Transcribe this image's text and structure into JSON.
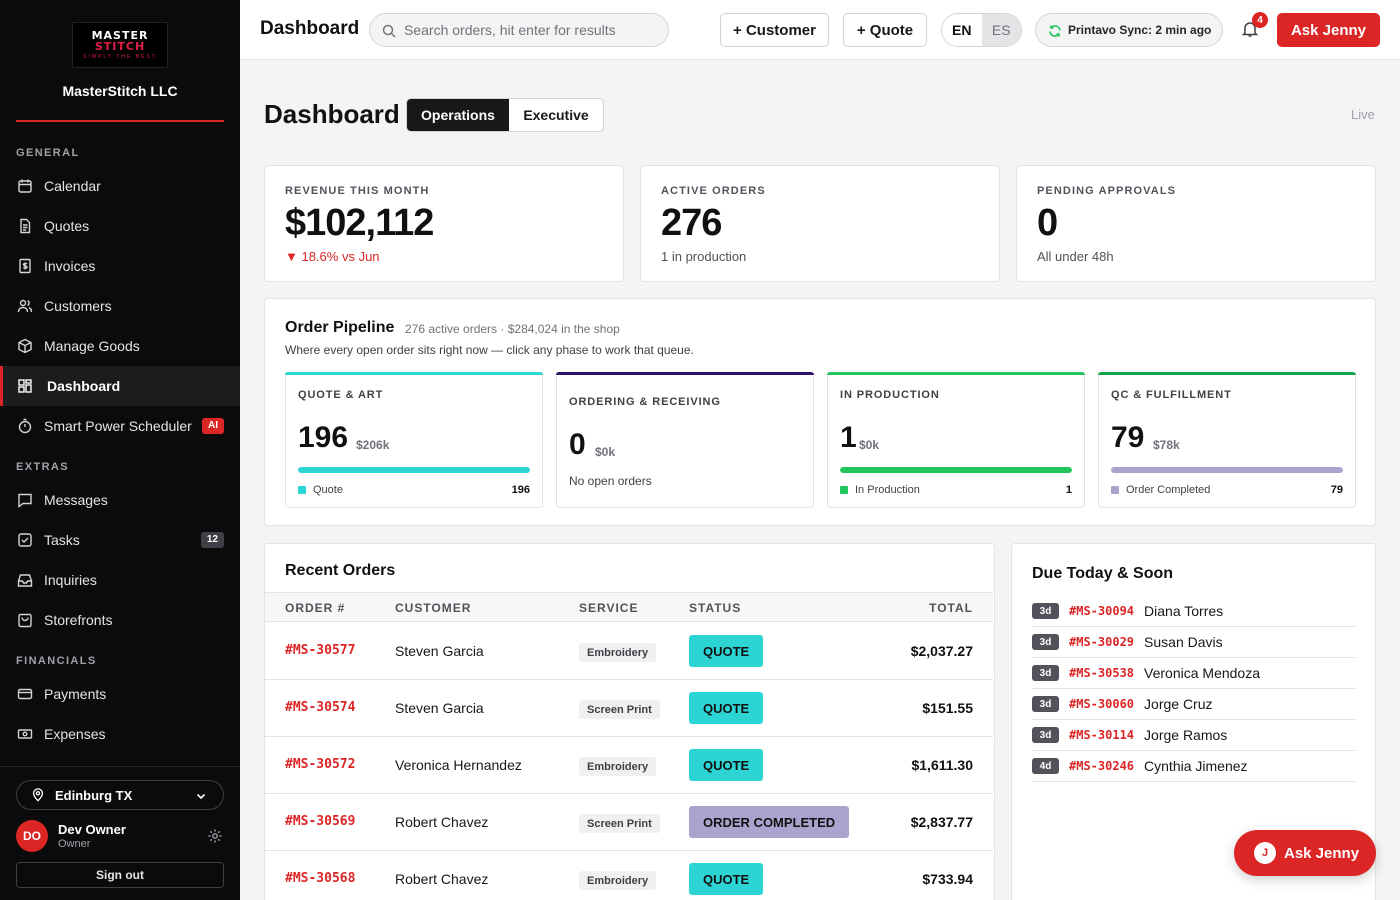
{
  "brand": {
    "logo_text_top": "MASTER",
    "logo_text_main": "STITCH",
    "logo_tagline": "SIMPLY THE BEST",
    "company_name": "MasterStitch LLC",
    "accent_color": "#dc2626"
  },
  "sidebar": {
    "sections": [
      {
        "label": "GENERAL"
      },
      {
        "label": "EXTRAS"
      },
      {
        "label": "FINANCIALS"
      }
    ],
    "general_items": [
      {
        "label": "Calendar",
        "icon": "calendar-icon"
      },
      {
        "label": "Quotes",
        "icon": "document-icon"
      },
      {
        "label": "Invoices",
        "icon": "invoice-icon"
      },
      {
        "label": "Customers",
        "icon": "users-icon"
      },
      {
        "label": "Manage Goods",
        "icon": "box-icon"
      },
      {
        "label": "Dashboard",
        "icon": "grid-icon",
        "active": true
      },
      {
        "label": "Smart Power Scheduler",
        "icon": "stopwatch-icon",
        "badge": "AI"
      }
    ],
    "extras_items": [
      {
        "label": "Messages",
        "icon": "message-icon"
      },
      {
        "label": "Tasks",
        "icon": "checkbox-icon",
        "badge": "12"
      },
      {
        "label": "Inquiries",
        "icon": "inbox-icon"
      },
      {
        "label": "Storefronts",
        "icon": "store-icon"
      }
    ],
    "financial_items": [
      {
        "label": "Payments",
        "icon": "card-icon"
      },
      {
        "label": "Expenses",
        "icon": "cash-icon"
      }
    ],
    "location": "Edinburg TX",
    "user": {
      "initials": "DO",
      "name": "Dev Owner",
      "role": "Owner"
    },
    "signout_label": "Sign out"
  },
  "topbar": {
    "title": "Dashboard",
    "search_placeholder": "Search orders, hit enter for results",
    "add_customer_label": "+ Customer",
    "add_quote_label": "+ Quote",
    "lang_en": "EN",
    "lang_es": "ES",
    "sync_status": "Printavo Sync: 2 min ago",
    "notification_count": "4",
    "ask_label": "Ask Jenny"
  },
  "page": {
    "title": "Dashboard",
    "tab_operations": "Operations",
    "tab_executive": "Executive",
    "live_label": "Live"
  },
  "kpis": [
    {
      "label": "REVENUE THIS MONTH",
      "value": "$102,112",
      "sub": "▼ 18.6% vs Jun",
      "trend": "down"
    },
    {
      "label": "ACTIVE ORDERS",
      "value": "276",
      "sub": "1 in production",
      "trend": "neutral"
    },
    {
      "label": "PENDING APPROVALS",
      "value": "0",
      "sub": "All under 48h",
      "trend": "neutral"
    }
  ],
  "pipeline": {
    "title": "Order Pipeline",
    "meta": "276 active orders · $284,024 in the shop",
    "description": "Where every open order sits right now — click any phase to work that queue.",
    "phases": [
      {
        "label": "QUOTE & ART",
        "count": "196",
        "amount": "$206k",
        "color": "#2dd4d4",
        "legend": "Quote",
        "legend_count": "196",
        "fill_fraction": 1.0
      },
      {
        "label": "ORDERING & RECEIVING",
        "count": "0",
        "amount": "$0k",
        "color": "#2e1065",
        "empty_text": "No open orders"
      },
      {
        "label": "IN PRODUCTION",
        "count": "1",
        "amount": "$0k",
        "color": "#22c55e",
        "legend": "In Production",
        "legend_count": "1",
        "fill_fraction": 1.0
      },
      {
        "label": "QC & FULFILLMENT",
        "count": "79",
        "amount": "$78k",
        "color": "#16a34a",
        "legend": "Order Completed",
        "legend_count": "79",
        "fill_fraction": 1.0,
        "bar_color": "#a8a4ce"
      }
    ]
  },
  "recent_orders": {
    "title": "Recent Orders",
    "columns": [
      "ORDER #",
      "CUSTOMER",
      "SERVICE",
      "STATUS",
      "TOTAL"
    ],
    "rows": [
      {
        "order": "#MS-30577",
        "customer": "Steven Garcia",
        "service": "Embroidery",
        "status": "QUOTE",
        "status_color": "#2dd4d4",
        "total": "$2,037.27"
      },
      {
        "order": "#MS-30574",
        "customer": "Steven Garcia",
        "service": "Screen Print",
        "status": "QUOTE",
        "status_color": "#2dd4d4",
        "total": "$151.55"
      },
      {
        "order": "#MS-30572",
        "customer": "Veronica Hernandez",
        "service": "Embroidery",
        "status": "QUOTE",
        "status_color": "#2dd4d4",
        "total": "$1,611.30"
      },
      {
        "order": "#MS-30569",
        "customer": "Robert Chavez",
        "service": "Screen Print",
        "status": "ORDER COMPLETED",
        "status_color": "#a8a4ce",
        "total": "$2,837.77"
      },
      {
        "order": "#MS-30568",
        "customer": "Robert Chavez",
        "service": "Embroidery",
        "status": "QUOTE",
        "status_color": "#2dd4d4",
        "total": "$733.94"
      }
    ]
  },
  "due_soon": {
    "title": "Due Today & Soon",
    "items": [
      {
        "age": "3d",
        "order": "#MS-30094",
        "name": "Diana Torres"
      },
      {
        "age": "3d",
        "order": "#MS-30029",
        "name": "Susan Davis"
      },
      {
        "age": "3d",
        "order": "#MS-30538",
        "name": "Veronica Mendoza"
      },
      {
        "age": "3d",
        "order": "#MS-30060",
        "name": "Jorge Cruz"
      },
      {
        "age": "3d",
        "order": "#MS-30114",
        "name": "Jorge Ramos"
      },
      {
        "age": "4d",
        "order": "#MS-30246",
        "name": "Cynthia Jimenez"
      }
    ]
  },
  "fab": {
    "icon_letter": "J",
    "label": "Ask Jenny"
  }
}
